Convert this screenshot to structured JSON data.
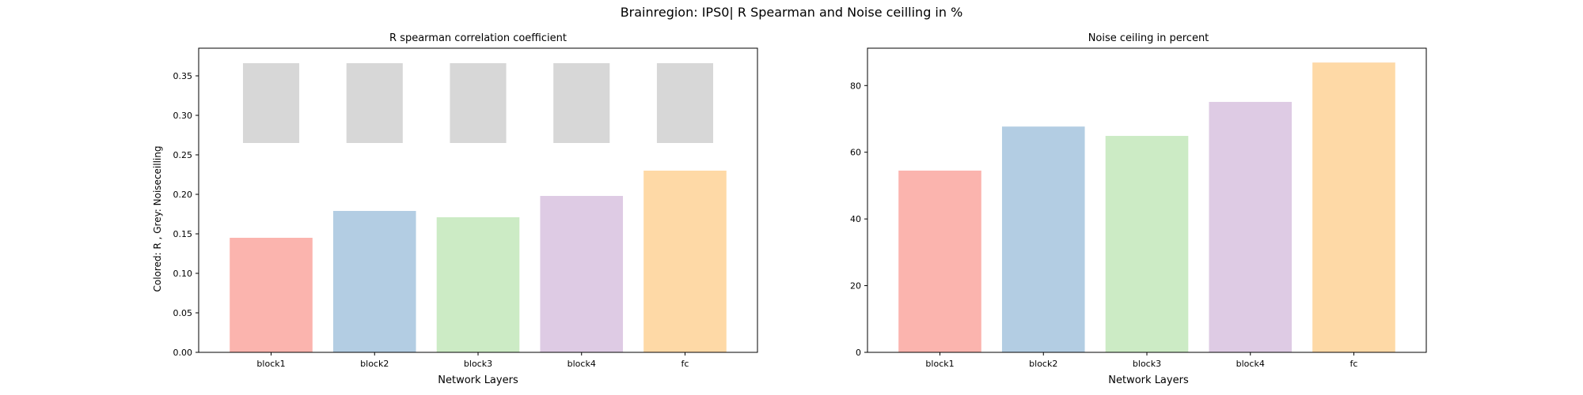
{
  "figure": {
    "title": "Brainregion: IPS0| R Spearman and Noise ceilling in %"
  },
  "chart_data": [
    {
      "type": "bar",
      "title": "R spearman correlation coefficient",
      "xlabel": "Network Layers",
      "ylabel": "Colored: R , Grey: Noiseceilling",
      "categories": [
        "block1",
        "block2",
        "block3",
        "block4",
        "fc"
      ],
      "values": [
        0.145,
        0.179,
        0.171,
        0.198,
        0.23
      ],
      "colors": [
        "#fbb4ae",
        "#b3cde3",
        "#ccebc5",
        "#decbe4",
        "#fed9a6"
      ],
      "noise_ceiling": {
        "color": "#d7d7d7",
        "lower": [
          0.265,
          0.265,
          0.265,
          0.265,
          0.265
        ],
        "upper": [
          0.366,
          0.366,
          0.366,
          0.366,
          0.366
        ]
      },
      "ylim": [
        0,
        0.385
      ],
      "yticks": [
        "0.00",
        "0.05",
        "0.10",
        "0.15",
        "0.20",
        "0.25",
        "0.30",
        "0.35"
      ],
      "grid": false
    },
    {
      "type": "bar",
      "title": "Noise ceiling in percent",
      "xlabel": "Network Layers",
      "ylabel": "",
      "categories": [
        "block1",
        "block2",
        "block3",
        "block4",
        "fc"
      ],
      "values": [
        54.5,
        67.7,
        64.9,
        75.1,
        86.9
      ],
      "colors": [
        "#fbb4ae",
        "#b3cde3",
        "#ccebc5",
        "#decbe4",
        "#fed9a6"
      ],
      "ylim": [
        0,
        91.2
      ],
      "yticks": [
        "0",
        "20",
        "40",
        "60",
        "80"
      ],
      "grid": false
    }
  ]
}
